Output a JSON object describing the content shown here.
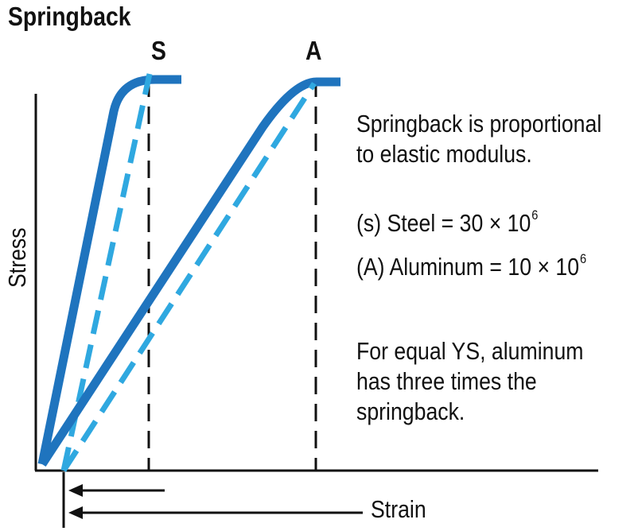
{
  "title": "Springback",
  "markers": {
    "steel": "S",
    "aluminum": "A"
  },
  "axes": {
    "ylabel": "Stress",
    "xlabel": "Strain"
  },
  "notes": {
    "proportional_line1": "Springback is proportional",
    "proportional_line2": "to elastic modulus.",
    "steel_prefix": "(s) Steel = 30 × 10",
    "steel_exp": "6",
    "aluminum_prefix": "(A) Aluminum = 10 × 10",
    "aluminum_exp": "6",
    "conclusion_line1": "For equal YS, aluminum",
    "conclusion_line2": "has three times the",
    "conclusion_line3": "springback."
  },
  "colors": {
    "loading_curve": "#1f74be",
    "unloading_curve": "#2fa8e0",
    "axis": "#111111"
  }
}
